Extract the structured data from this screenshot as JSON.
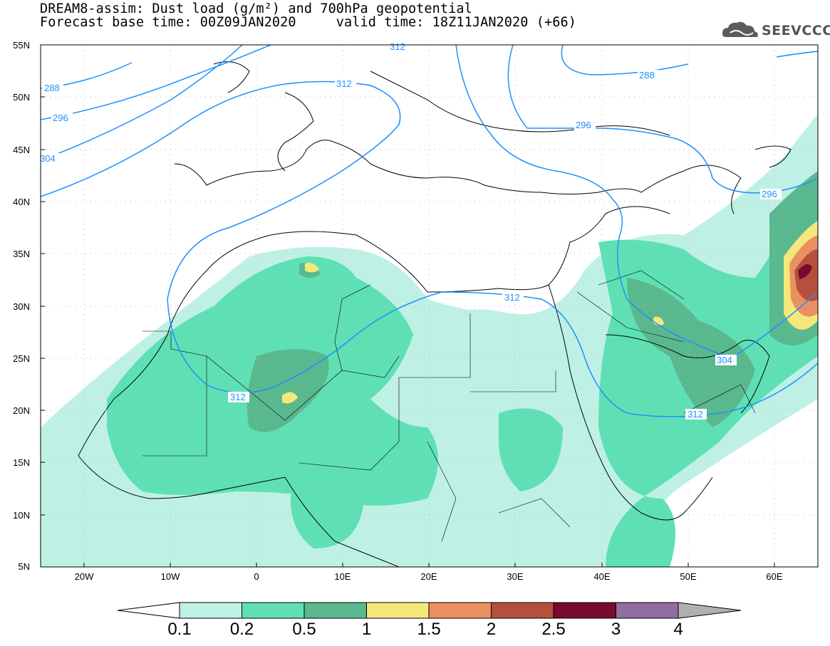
{
  "header": {
    "line1": "DREAM8-assim: Dust load (g/m²) and 700hPa geopotential",
    "line2": "Forecast base time: 00Z09JAN2020     valid time: 18Z11JAN2020 (+66)"
  },
  "logo": {
    "text": "SEEVCCC",
    "icon": "cloud-icon"
  },
  "axes": {
    "lat_labels": [
      "55N",
      "50N",
      "45N",
      "40N",
      "35N",
      "30N",
      "25N",
      "20N",
      "15N",
      "10N",
      "5N"
    ],
    "lon_labels": [
      "20W",
      "10W",
      "0",
      "10E",
      "20E",
      "30E",
      "40E",
      "50E",
      "60E"
    ]
  },
  "contours": {
    "color": "#1e90ff",
    "labels": [
      "288",
      "296",
      "304",
      "312",
      "312",
      "312",
      "296",
      "288",
      "296",
      "304",
      "312",
      "312"
    ]
  },
  "colorbar": {
    "labels": [
      "0.1",
      "0.2",
      "0.5",
      "1",
      "1.5",
      "2",
      "2.5",
      "3",
      "4"
    ],
    "colors": [
      "#bff0e6",
      "#5fe0b4",
      "#5ab88f",
      "#f5e87a",
      "#ea9063",
      "#b4503c",
      "#7a0a2e",
      "#8f6ea2",
      "#b0b0b0"
    ]
  }
}
